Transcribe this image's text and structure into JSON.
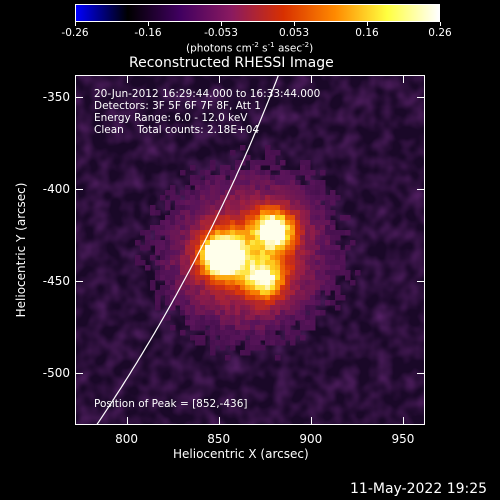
{
  "colorbar": {
    "ticks": [
      "-0.26",
      "-0.16",
      "-0.053",
      "0.053",
      "0.16",
      "0.26"
    ],
    "units_text": "(photons cm",
    "units_sup1": "-2",
    "units_mid": " s",
    "units_sup2": "-1",
    "units_tail": " asec",
    "units_sup3": "-2",
    "units_close": ")",
    "colors": [
      "#0000ff",
      "#000000",
      "#400060",
      "#8a1a60",
      "#d83000",
      "#ff8a00",
      "#ffff40",
      "#ffffff"
    ]
  },
  "title": "Reconstructed RHESSI Image",
  "info": {
    "line1": "20-Jun-2012 16:29:44.000 to 16:33:44.000",
    "line2": "Detectors: 3F 5F 6F 7F 8F, Att 1",
    "line3": "Energy Range: 6.0 - 12.0 keV",
    "line4": "Clean    Total counts: 2.18E+04",
    "peak": "Position of Peak = [852,-436]"
  },
  "axes": {
    "xlabel": "Heliocentric X (arcsec)",
    "ylabel": "Heliocentric Y (arcsec)",
    "xticks": [
      "800",
      "850",
      "900",
      "950"
    ],
    "yticks": [
      "-350",
      "-400",
      "-450",
      "-500"
    ]
  },
  "footer_timestamp": "11-May-2022 19:25",
  "chart_data": {
    "type": "heatmap",
    "title": "Reconstructed RHESSI Image",
    "xlabel": "Heliocentric X (arcsec)",
    "ylabel": "Heliocentric Y (arcsec)",
    "xlim": [
      772,
      962
    ],
    "ylim": [
      -528,
      -338
    ],
    "peak_position": [
      852,
      -436
    ],
    "sources": [
      {
        "x": 852,
        "y": -436,
        "relative_intensity": 1.0
      },
      {
        "x": 880,
        "y": -422,
        "relative_intensity": 0.7
      },
      {
        "x": 875,
        "y": -449,
        "relative_intensity": 0.55
      }
    ],
    "color_range": [
      -0.26,
      0.26
    ],
    "limb_arc": true
  }
}
